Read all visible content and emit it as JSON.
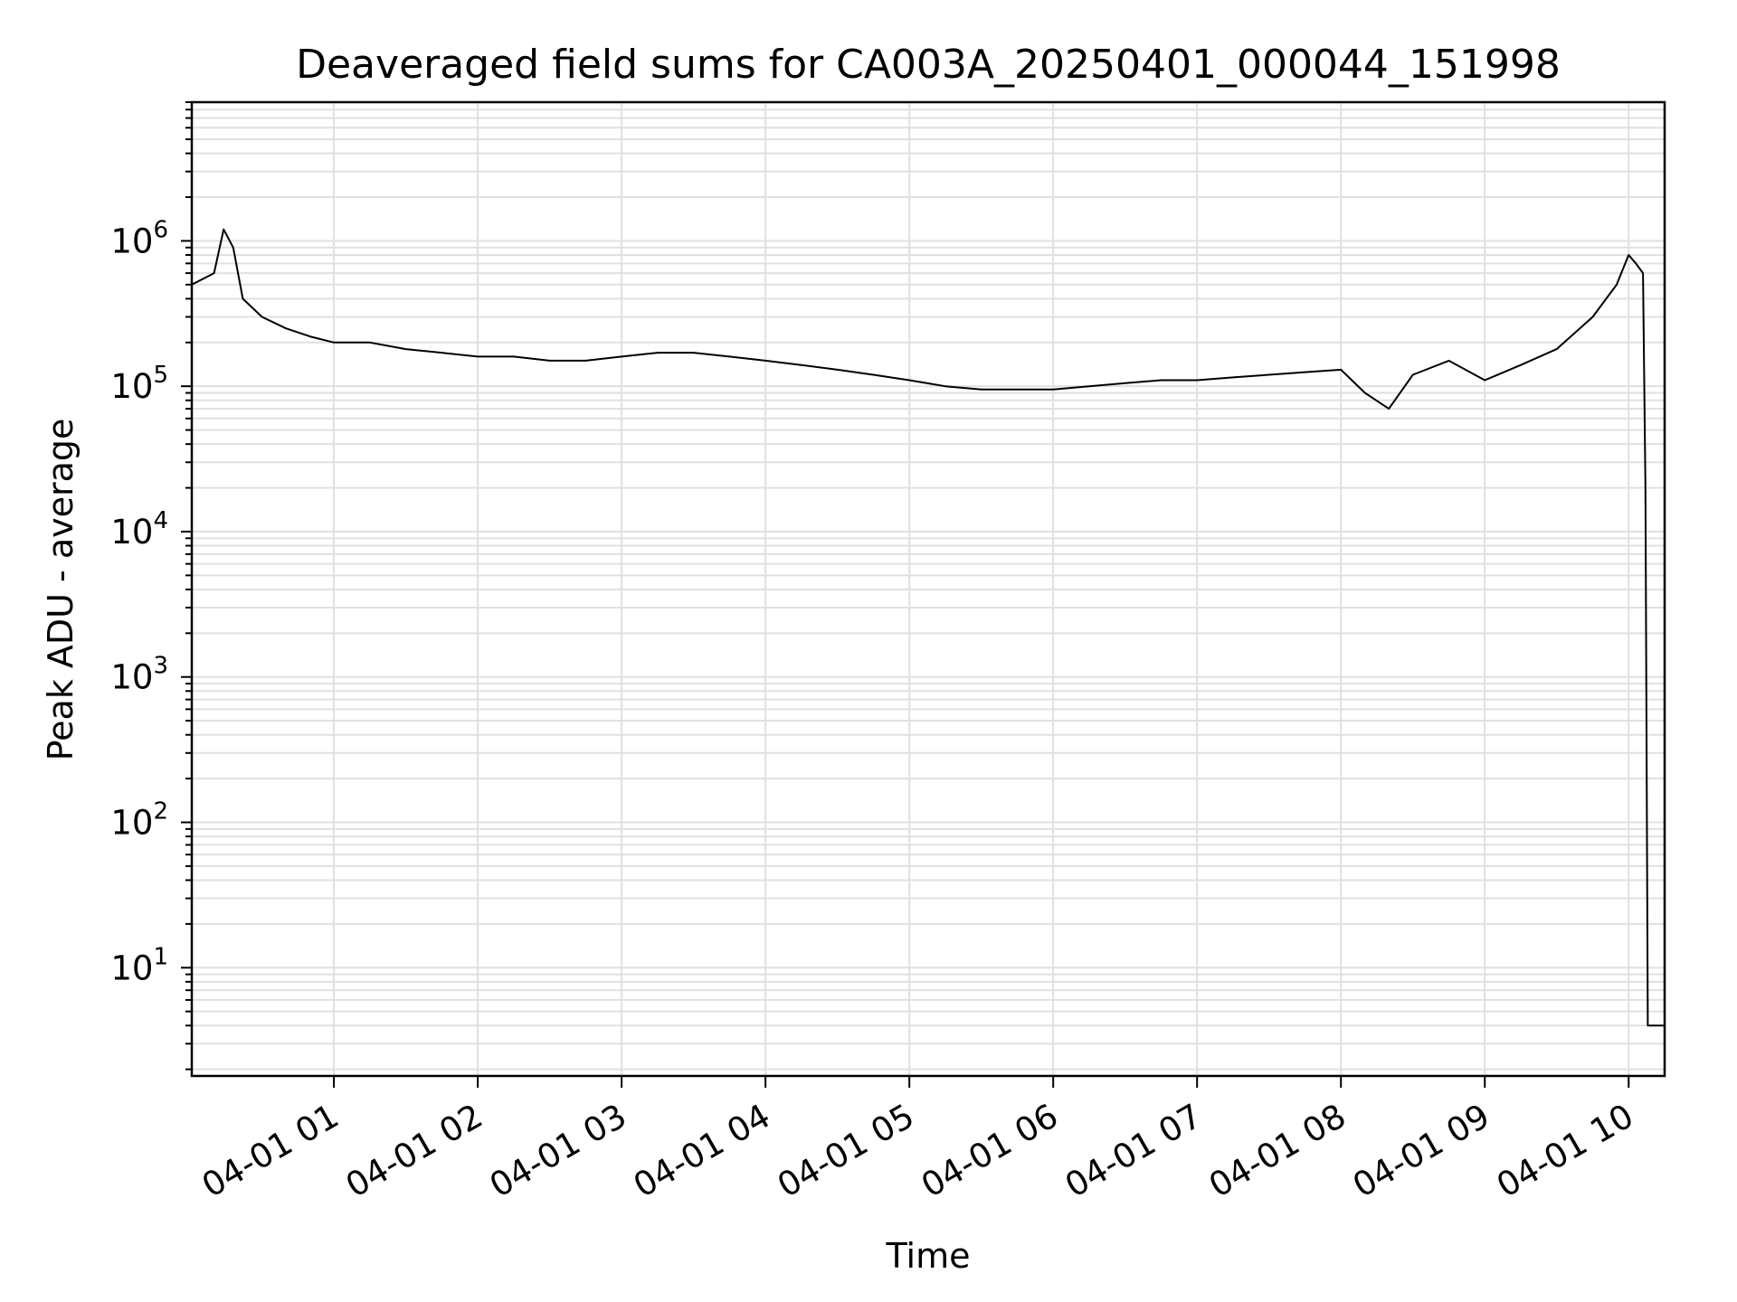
{
  "chart_data": {
    "type": "line",
    "title": "Deaveraged field sums for CA003A_20250401_000044_151998",
    "xlabel": "Time",
    "ylabel": "Peak ADU - average",
    "yscale": "log",
    "ylim": [
      1.8,
      9000000
    ],
    "xlim": [
      "2025-04-01 00:00:44",
      "2025-04-01 10:15:00"
    ],
    "x_ticks": [
      {
        "t": "2025-04-01 01:00",
        "label": "04-01 01"
      },
      {
        "t": "2025-04-01 02:00",
        "label": "04-01 02"
      },
      {
        "t": "2025-04-01 03:00",
        "label": "04-01 03"
      },
      {
        "t": "2025-04-01 04:00",
        "label": "04-01 04"
      },
      {
        "t": "2025-04-01 05:00",
        "label": "04-01 05"
      },
      {
        "t": "2025-04-01 06:00",
        "label": "04-01 06"
      },
      {
        "t": "2025-04-01 07:00",
        "label": "04-01 07"
      },
      {
        "t": "2025-04-01 08:00",
        "label": "04-01 08"
      },
      {
        "t": "2025-04-01 09:00",
        "label": "04-01 09"
      },
      {
        "t": "2025-04-01 10:00",
        "label": "04-01 10"
      }
    ],
    "y_ticks": [
      {
        "value": 10,
        "base": "10",
        "exp": "1"
      },
      {
        "value": 100,
        "base": "10",
        "exp": "2"
      },
      {
        "value": 1000,
        "base": "10",
        "exp": "3"
      },
      {
        "value": 10000,
        "base": "10",
        "exp": "4"
      },
      {
        "value": 100000,
        "base": "10",
        "exp": "5"
      },
      {
        "value": 1000000,
        "base": "10",
        "exp": "6"
      }
    ],
    "grid": true,
    "line_color": "#000000",
    "grid_color": "#e0e0e0",
    "series": [
      {
        "x": [
          "2025-04-01 00:00:44",
          "2025-04-01 00:10",
          "2025-04-01 00:14",
          "2025-04-01 00:18",
          "2025-04-01 00:22",
          "2025-04-01 00:30",
          "2025-04-01 00:40",
          "2025-04-01 00:50",
          "2025-04-01 01:00",
          "2025-04-01 01:15",
          "2025-04-01 01:30",
          "2025-04-01 01:45",
          "2025-04-01 02:00",
          "2025-04-01 02:15",
          "2025-04-01 02:30",
          "2025-04-01 02:45",
          "2025-04-01 03:00",
          "2025-04-01 03:15",
          "2025-04-01 03:30",
          "2025-04-01 03:45",
          "2025-04-01 04:00",
          "2025-04-01 04:15",
          "2025-04-01 04:30",
          "2025-04-01 04:45",
          "2025-04-01 05:00",
          "2025-04-01 05:15",
          "2025-04-01 05:30",
          "2025-04-01 05:45",
          "2025-04-01 06:00",
          "2025-04-01 06:15",
          "2025-04-01 06:30",
          "2025-04-01 06:45",
          "2025-04-01 07:00",
          "2025-04-01 07:15",
          "2025-04-01 07:30",
          "2025-04-01 07:45",
          "2025-04-01 08:00",
          "2025-04-01 08:10",
          "2025-04-01 08:20",
          "2025-04-01 08:30",
          "2025-04-01 08:45",
          "2025-04-01 09:00",
          "2025-04-01 09:15",
          "2025-04-01 09:30",
          "2025-04-01 09:45",
          "2025-04-01 09:55",
          "2025-04-01 10:00",
          "2025-04-01 10:03",
          "2025-04-01 10:06",
          "2025-04-01 10:07",
          "2025-04-01 10:08",
          "2025-04-01 10:15"
        ],
        "y": [
          500000,
          600000,
          1200000,
          900000,
          400000,
          300000,
          250000,
          220000,
          200000,
          200000,
          180000,
          170000,
          160000,
          160000,
          150000,
          150000,
          160000,
          170000,
          170000,
          160000,
          150000,
          140000,
          130000,
          120000,
          110000,
          100000,
          95000,
          95000,
          95000,
          100000,
          105000,
          110000,
          110000,
          115000,
          120000,
          125000,
          130000,
          90000,
          70000,
          120000,
          150000,
          110000,
          140000,
          180000,
          300000,
          500000,
          800000,
          700000,
          600000,
          20000,
          4,
          4
        ]
      }
    ]
  }
}
